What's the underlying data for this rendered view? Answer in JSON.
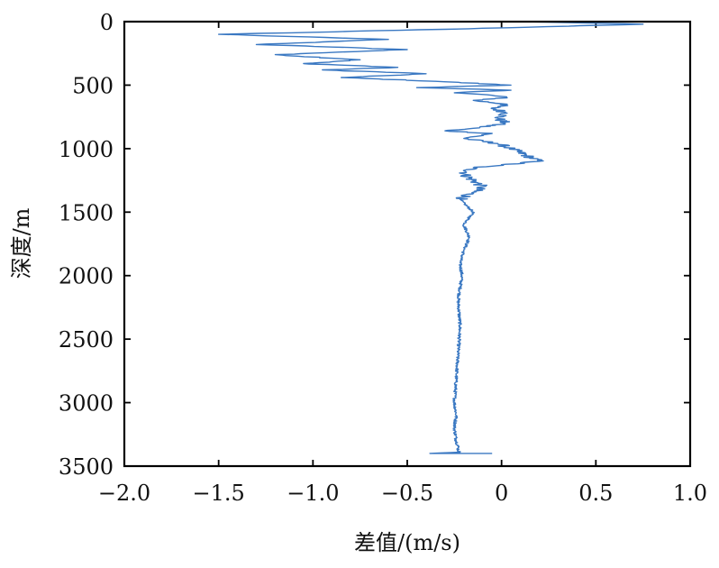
{
  "chart_data": {
    "type": "line",
    "title": "",
    "xlabel": "差值/(m/s)",
    "ylabel": "深度/m",
    "xlim": [
      -2.0,
      1.0
    ],
    "ylim": [
      0,
      3500
    ],
    "y_inverted": true,
    "grid": false,
    "legend": "none",
    "x_ticks": [
      "−2.0",
      "−1.5",
      "−1.0",
      "−0.5",
      "0",
      "0.5",
      "1.0"
    ],
    "y_ticks": [
      "0",
      "500",
      "1000",
      "1500",
      "2000",
      "2500",
      "3000",
      "3500"
    ],
    "line_color": "#3a78c2",
    "series": [
      {
        "x": [
          0.1,
          0.75,
          -0.3,
          -1.5,
          -0.6,
          -1.3,
          -0.5,
          -1.2,
          -0.75,
          -1.05,
          -0.55,
          -0.95,
          -0.4,
          -0.85,
          -0.35,
          0.05,
          -0.45,
          0.05,
          -0.25,
          -0.05,
          0.03,
          -0.15,
          0.03,
          -0.05,
          0.03,
          -0.02,
          0.02,
          -0.15,
          -0.3,
          -0.05,
          -0.2,
          -0.02,
          0.05,
          0.2,
          -0.15,
          -0.2,
          -0.1,
          -0.22,
          -0.15,
          -0.2,
          -0.17,
          -0.2,
          -0.22,
          -0.21,
          -0.23,
          -0.22,
          -0.23,
          -0.24,
          -0.25,
          -0.24,
          -0.25,
          -0.24,
          -0.23,
          -0.23,
          -0.22,
          -0.38,
          -0.05
        ],
        "y": [
          0,
          20,
          60,
          100,
          140,
          180,
          220,
          260,
          300,
          330,
          360,
          380,
          410,
          440,
          470,
          500,
          520,
          540,
          560,
          580,
          600,
          620,
          650,
          680,
          720,
          760,
          800,
          840,
          860,
          880,
          920,
          960,
          1000,
          1100,
          1150,
          1200,
          1300,
          1400,
          1500,
          1600,
          1700,
          1800,
          1900,
          2000,
          2200,
          2400,
          2600,
          2800,
          3000,
          3100,
          3200,
          3300,
          3350,
          3380,
          3390,
          3400,
          3400
        ]
      }
    ]
  }
}
